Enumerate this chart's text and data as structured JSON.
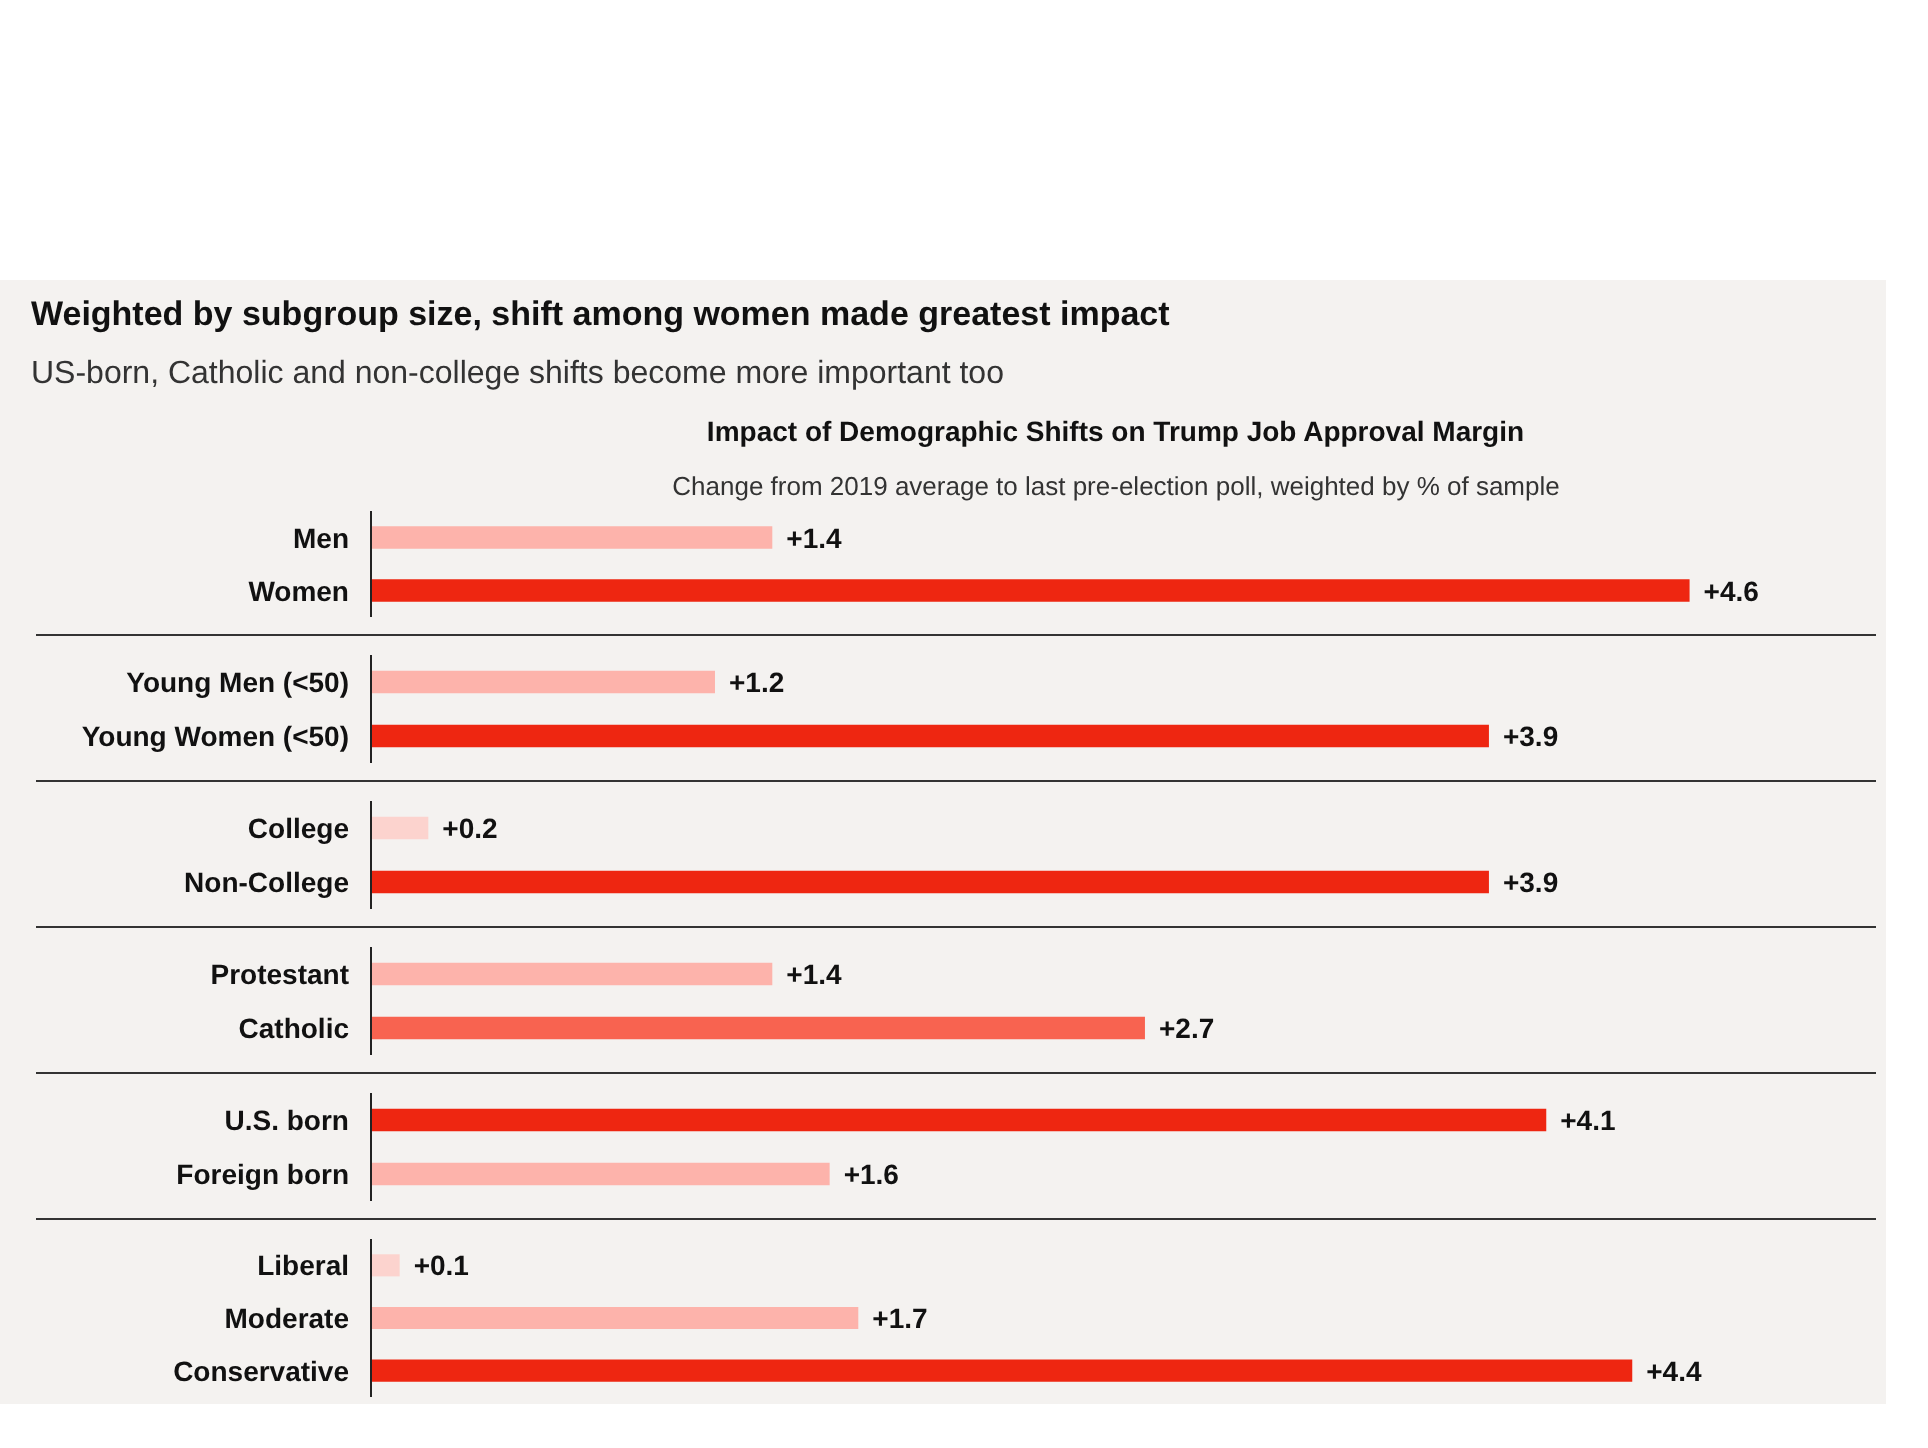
{
  "chart_data": [
    {
      "type": "bar",
      "orientation": "horizontal",
      "title": "Weighted by subgroup size, shift among women made greatest impact",
      "subtitle": "US-born, Catholic and non-college shifts become more important too",
      "annotations": [
        "Impact of Demographic Shifts on Trump Job Approval Margin",
        "Change from 2019 average to last pre-election poll, weighted by % of sample"
      ],
      "categories": [
        "Men",
        "Women"
      ],
      "values": [
        1.4,
        4.6
      ],
      "value_labels": [
        "+1.4",
        "+4.6"
      ],
      "colors": [
        "#fdb3ab",
        "#ee2611"
      ],
      "tick_labels": "y",
      "grid": false,
      "legend": false
    },
    {
      "type": "bar",
      "orientation": "horizontal",
      "categories": [
        "Young Men (<50)",
        "Young Women (<50)"
      ],
      "values": [
        1.2,
        3.9
      ],
      "value_labels": [
        "+1.2",
        "+3.9"
      ],
      "colors": [
        "#fdb3ab",
        "#ee2611"
      ],
      "tick_labels": "y",
      "grid": false,
      "legend": false
    },
    {
      "type": "bar",
      "orientation": "horizontal",
      "categories": [
        "College",
        "Non-College"
      ],
      "values": [
        0.2,
        3.9
      ],
      "value_labels": [
        "+0.2",
        "+3.9"
      ],
      "colors": [
        "#fcd3ce",
        "#ee2611"
      ],
      "tick_labels": "y",
      "grid": false,
      "legend": false
    },
    {
      "type": "bar",
      "orientation": "horizontal",
      "categories": [
        "Protestant",
        "Catholic"
      ],
      "values": [
        1.4,
        2.7
      ],
      "value_labels": [
        "+1.4",
        "+2.7"
      ],
      "colors": [
        "#fdb3ab",
        "#f86350"
      ],
      "tick_labels": "y",
      "grid": false,
      "legend": false
    },
    {
      "type": "bar",
      "orientation": "horizontal",
      "categories": [
        "U.S. born",
        "Foreign born"
      ],
      "values": [
        4.1,
        1.6
      ],
      "value_labels": [
        "+4.1",
        "+1.6"
      ],
      "colors": [
        "#ee2611",
        "#fdb3ab"
      ],
      "tick_labels": "y",
      "grid": false,
      "legend": false
    },
    {
      "type": "bar",
      "orientation": "horizontal",
      "categories": [
        "Liberal",
        "Moderate",
        "Conservative"
      ],
      "values": [
        0.1,
        1.7,
        4.4
      ],
      "value_labels": [
        "+0.1",
        "+1.7",
        "+4.4"
      ],
      "colors": [
        "#fcd3ce",
        "#fdb3ab",
        "#ee2611"
      ],
      "tick_labels": "y",
      "grid": false,
      "legend": false
    }
  ]
}
